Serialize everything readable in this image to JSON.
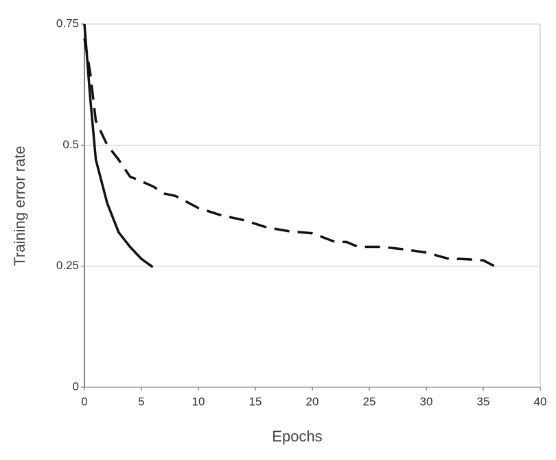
{
  "chart_data": {
    "type": "line",
    "x_label": "Epochs",
    "y_label": "Training error rate",
    "xlim": [
      0,
      40
    ],
    "xticks": [
      0,
      5,
      10,
      15,
      20,
      25,
      30,
      35,
      40
    ],
    "ylim": [
      0,
      0.75
    ],
    "yticks": [
      0,
      0.25,
      0.5,
      0.75
    ],
    "grid": true,
    "series": [
      {
        "color": "#111111",
        "dash": false,
        "x": [
          0,
          0.5,
          1,
          2,
          3,
          4,
          5,
          6
        ],
        "values": [
          0.75,
          0.6,
          0.47,
          0.38,
          0.32,
          0.29,
          0.265,
          0.248
        ]
      },
      {
        "color": "#111111",
        "dash": true,
        "x": [
          0,
          0.5,
          1,
          2,
          3,
          4,
          5,
          6,
          7,
          8,
          10,
          12,
          14,
          16,
          18,
          20,
          22,
          23,
          24,
          26,
          28,
          30,
          32,
          33,
          35,
          36
        ],
        "values": [
          0.72,
          0.65,
          0.55,
          0.5,
          0.47,
          0.435,
          0.425,
          0.415,
          0.4,
          0.395,
          0.37,
          0.355,
          0.345,
          0.33,
          0.322,
          0.318,
          0.3,
          0.3,
          0.29,
          0.29,
          0.285,
          0.278,
          0.265,
          0.265,
          0.262,
          0.25
        ]
      }
    ]
  }
}
